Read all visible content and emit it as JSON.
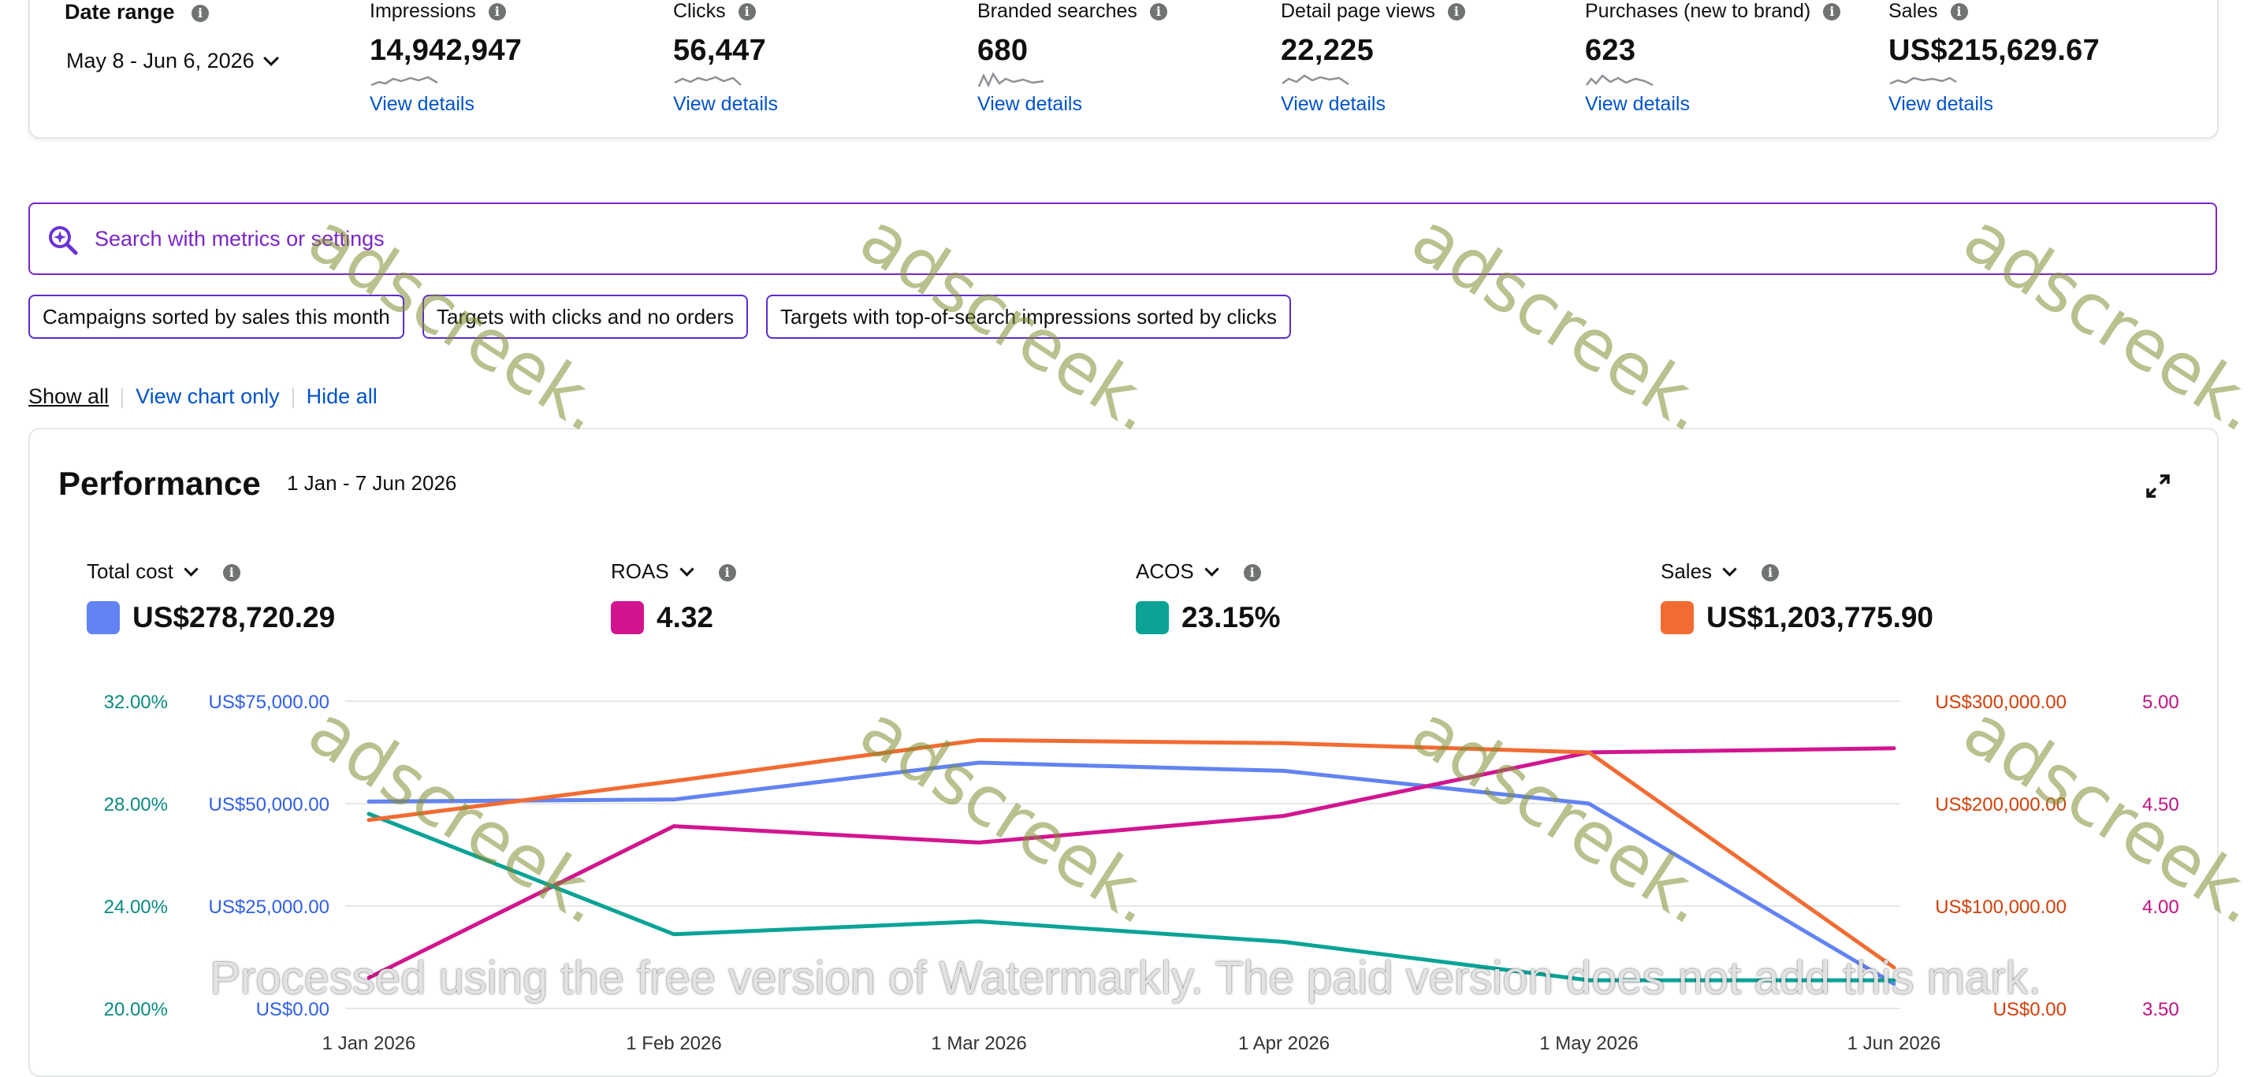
{
  "date_range": {
    "label": "Date range",
    "value": "May 8 - Jun 6, 2026"
  },
  "metrics": [
    {
      "label": "Impressions",
      "value": "14,942,947",
      "link": "View details"
    },
    {
      "label": "Clicks",
      "value": "56,447",
      "link": "View details"
    },
    {
      "label": "Branded searches",
      "value": "680",
      "link": "View details"
    },
    {
      "label": "Detail page views",
      "value": "22,225",
      "link": "View details"
    },
    {
      "label": "Purchases (new to brand)",
      "value": "623",
      "link": "View details"
    },
    {
      "label": "Sales",
      "value": "US$215,629.67",
      "link": "View details"
    }
  ],
  "search": {
    "placeholder": "Search with metrics or settings"
  },
  "chips": [
    "Campaigns sorted by sales this month",
    "Targets with clicks and no orders",
    "Targets with top-of-search impressions sorted by clicks"
  ],
  "view_tabs": {
    "show_all": "Show all",
    "chart_only": "View chart only",
    "hide_all": "Hide all"
  },
  "performance": {
    "title": "Performance",
    "range": "1 Jan - 7 Jun 2026",
    "kpis": [
      {
        "label": "Total cost",
        "value": "US$278,720.29",
        "color": "#6383f2"
      },
      {
        "label": "ROAS",
        "value": "4.32",
        "color": "#d2158f"
      },
      {
        "label": "ACOS",
        "value": "23.15%",
        "color": "#0aa396"
      },
      {
        "label": "Sales",
        "value": "US$1,203,775.90",
        "color": "#f26b32"
      }
    ]
  },
  "chart_data": {
    "type": "line",
    "x": [
      "1 Jan 2026",
      "1 Feb 2026",
      "1 Mar 2026",
      "1 Apr 2026",
      "1 May 2026",
      "1 Jun 2026"
    ],
    "axes": {
      "acos": {
        "ticks": [
          "32.00%",
          "28.00%",
          "24.00%",
          "20.00%"
        ],
        "min": 20,
        "max": 32,
        "color": "#0a8a80"
      },
      "cost": {
        "ticks": [
          "US$75,000.00",
          "US$50,000.00",
          "US$25,000.00",
          "US$0.00"
        ],
        "min": 0,
        "max": 75000,
        "color": "#2f5fe8"
      },
      "sales": {
        "ticks": [
          "US$300,000.00",
          "US$200,000.00",
          "US$100,000.00",
          "US$0.00"
        ],
        "min": 0,
        "max": 300000,
        "color": "#d33f08"
      },
      "roas": {
        "ticks": [
          "5.00",
          "4.50",
          "4.00",
          "3.50"
        ],
        "min": 3.5,
        "max": 5.0,
        "color": "#c0127f"
      }
    },
    "series": [
      {
        "name": "Total cost",
        "axis": "cost",
        "color": "#6383f2",
        "values": [
          50500,
          51000,
          60000,
          58000,
          50000,
          6000
        ]
      },
      {
        "name": "ROAS",
        "axis": "roas",
        "color": "#d2158f",
        "values": [
          3.65,
          4.39,
          4.31,
          4.44,
          4.75,
          4.77
        ]
      },
      {
        "name": "ACOS",
        "axis": "acos",
        "color": "#0aa396",
        "values": [
          27.6,
          22.9,
          23.4,
          22.6,
          21.1,
          21.1
        ]
      },
      {
        "name": "Sales",
        "axis": "sales",
        "color": "#f26b32",
        "values": [
          184000,
          222000,
          262000,
          259000,
          250000,
          40000
        ]
      }
    ],
    "grid": true
  },
  "watermark": {
    "text": "adscreek.",
    "banner": "Processed using the free version of Watermarkly. The paid version does not add this mark."
  }
}
